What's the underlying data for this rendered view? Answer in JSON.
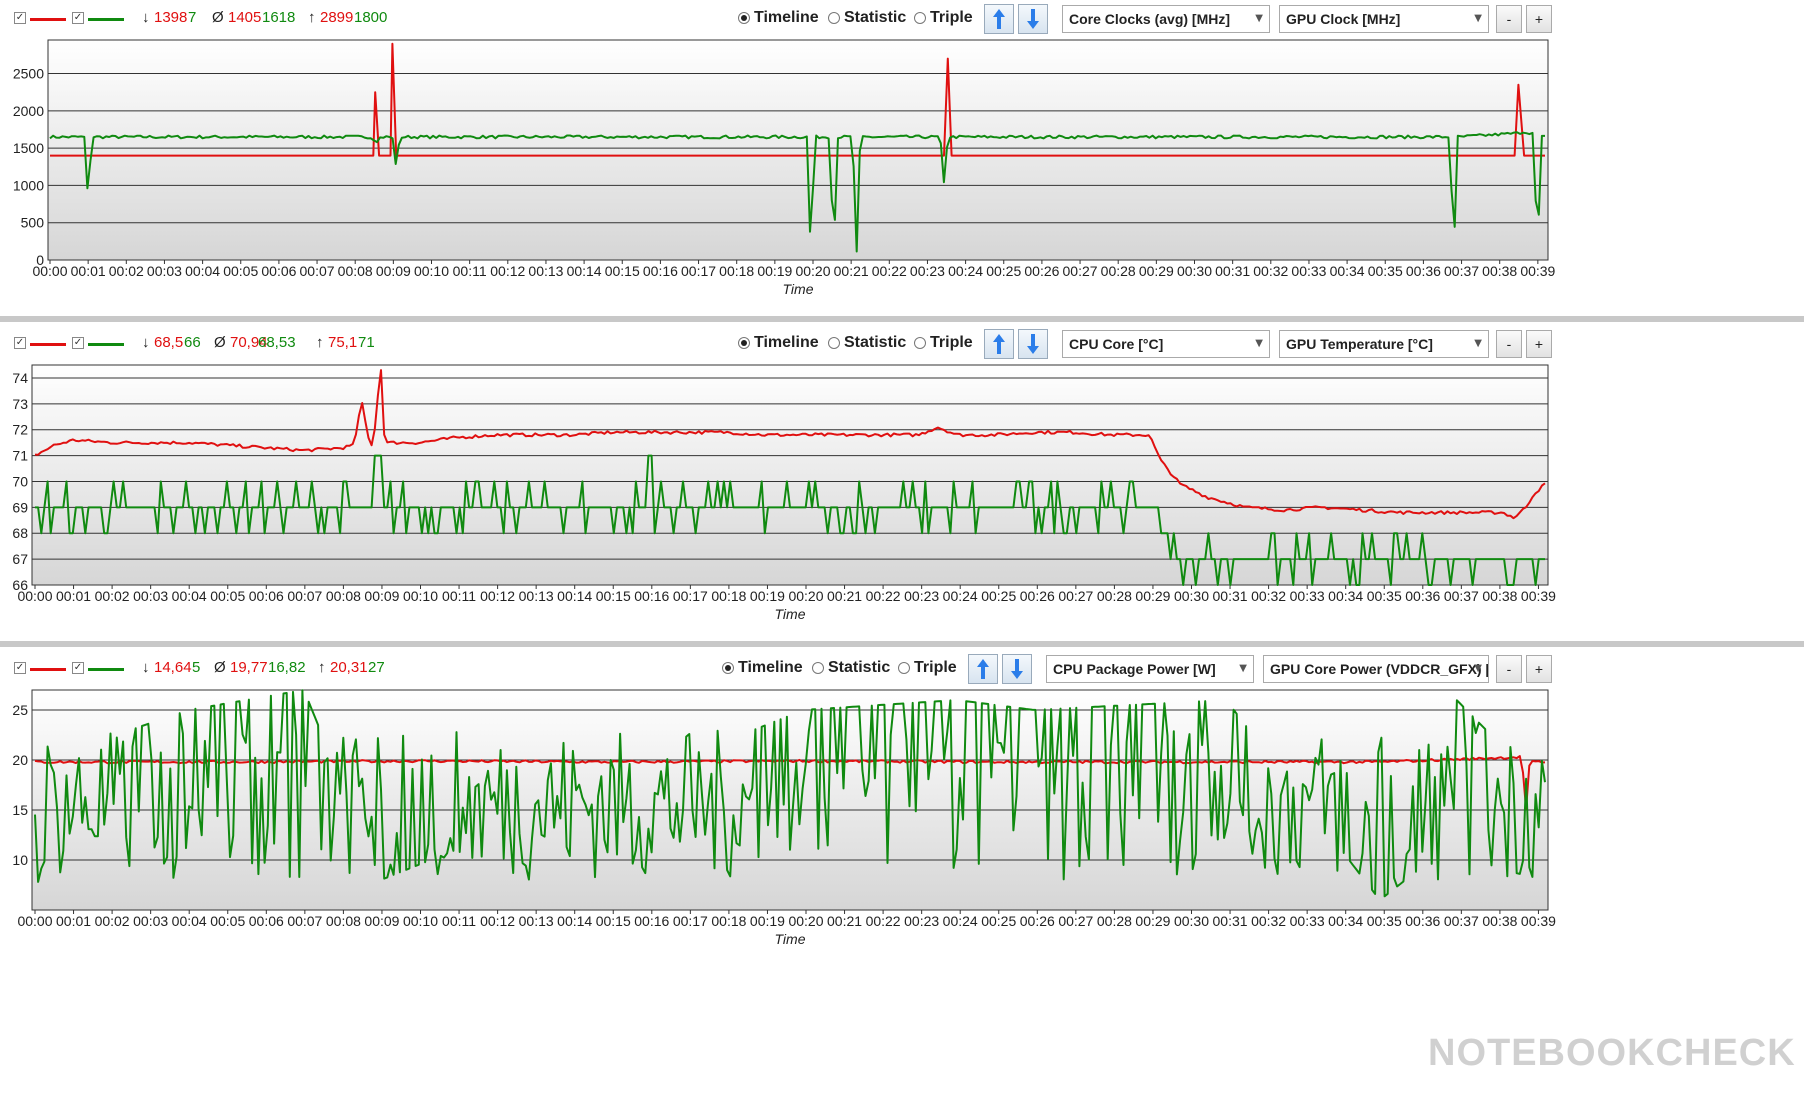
{
  "panels": [
    {
      "stats": {
        "min_red": "1398",
        "min_green": "7",
        "avg_red": "1405",
        "avg_green": "1618",
        "max_red": "2899",
        "max_green": "1800"
      },
      "radio": {
        "timeline": "Timeline",
        "statistic": "Statistic",
        "triple": "Triple"
      },
      "select_red": "Core Clocks (avg) [MHz]",
      "select_green": "GPU Clock [MHz]",
      "minus": "-",
      "plus": "+",
      "x_label": "Time",
      "x_ticks": [
        "00:00",
        "00:01",
        "00:02",
        "00:03",
        "00:04",
        "00:05",
        "00:06",
        "00:07",
        "00:08",
        "00:09",
        "00:10",
        "00:11",
        "00:12",
        "00:13",
        "00:14",
        "00:15",
        "00:16",
        "00:17",
        "00:18",
        "00:19",
        "00:20",
        "00:21",
        "00:22",
        "00:23",
        "00:24",
        "00:25",
        "00:26",
        "00:27",
        "00:28",
        "00:29",
        "00:30",
        "00:31",
        "00:32",
        "00:33",
        "00:34",
        "00:35",
        "00:36",
        "00:37",
        "00:38",
        "00:39"
      ],
      "y_ticks": [
        "0",
        "500",
        "1000",
        "1500",
        "2000",
        "2500"
      ]
    },
    {
      "stats": {
        "min_red": "68,5",
        "min_green": "66",
        "avg_red": "70,94",
        "avg_green": "68,53",
        "max_red": "75,1",
        "max_green": "71"
      },
      "radio": {
        "timeline": "Timeline",
        "statistic": "Statistic",
        "triple": "Triple"
      },
      "select_red": "CPU Core [°C]",
      "select_green": "GPU Temperature [°C]",
      "minus": "-",
      "plus": "+",
      "x_label": "Time",
      "x_ticks": [
        "00:00",
        "00:01",
        "00:02",
        "00:03",
        "00:04",
        "00:05",
        "00:06",
        "00:07",
        "00:08",
        "00:09",
        "00:10",
        "00:11",
        "00:12",
        "00:13",
        "00:14",
        "00:15",
        "00:16",
        "00:17",
        "00:18",
        "00:19",
        "00:20",
        "00:21",
        "00:22",
        "00:23",
        "00:24",
        "00:25",
        "00:26",
        "00:27",
        "00:28",
        "00:29",
        "00:30",
        "00:31",
        "00:32",
        "00:33",
        "00:34",
        "00:35",
        "00:36",
        "00:37",
        "00:38",
        "00:39"
      ],
      "y_ticks": [
        "66",
        "67",
        "68",
        "69",
        "70",
        "71",
        "72",
        "73",
        "74"
      ]
    },
    {
      "stats": {
        "min_red": "14,64",
        "min_green": "5",
        "avg_red": "19,77",
        "avg_green": "16,82",
        "max_red": "20,31",
        "max_green": "27"
      },
      "radio": {
        "timeline": "Timeline",
        "statistic": "Statistic",
        "triple": "Triple"
      },
      "select_red": "CPU Package Power [W]",
      "select_green": "GPU Core Power (VDDCR_GFX) [W]",
      "minus": "-",
      "plus": "+",
      "x_label": "Time",
      "x_ticks": [
        "00:00",
        "00:01",
        "00:02",
        "00:03",
        "00:04",
        "00:05",
        "00:06",
        "00:07",
        "00:08",
        "00:09",
        "00:10",
        "00:11",
        "00:12",
        "00:13",
        "00:14",
        "00:15",
        "00:16",
        "00:17",
        "00:18",
        "00:19",
        "00:20",
        "00:21",
        "00:22",
        "00:23",
        "00:24",
        "00:25",
        "00:26",
        "00:27",
        "00:28",
        "00:29",
        "00:30",
        "00:31",
        "00:32",
        "00:33",
        "00:34",
        "00:35",
        "00:36",
        "00:37",
        "00:38",
        "00:39"
      ],
      "y_ticks": [
        "10",
        "15",
        "20",
        "25"
      ]
    }
  ],
  "watermark": "NOTEBOOKCHECK",
  "colors": {
    "red": "#e01010",
    "green": "#108a10"
  },
  "chart_data": [
    {
      "type": "line",
      "xlabel": "Time",
      "ylabel": "",
      "x_range_minutes": [
        0,
        39.3
      ],
      "ylim": [
        0,
        2950
      ],
      "series": [
        {
          "name": "Core Clocks (avg) [MHz]",
          "color": "#e01010",
          "baseline": 1400,
          "x": [
            0,
            8.5,
            8.55,
            8.65,
            8.75,
            8.95,
            9.0,
            9.1,
            23.5,
            23.6,
            23.7,
            38.5,
            38.6,
            38.75,
            39.3
          ],
          "y": [
            1400,
            1400,
            2250,
            1400,
            1400,
            1400,
            2899,
            1400,
            1400,
            2700,
            1400,
            1400,
            2350,
            1400,
            1400
          ]
        },
        {
          "name": "GPU Clock [MHz]",
          "color": "#108a10",
          "baseline": 1650,
          "x": [
            0,
            0.9,
            1.0,
            1.1,
            8.4,
            8.6,
            8.7,
            9.0,
            9.1,
            9.2,
            19.9,
            20.0,
            20.1,
            20.3,
            20.5,
            20.6,
            20.7,
            21.1,
            21.2,
            21.3,
            23.4,
            23.5,
            23.6,
            36.8,
            36.9,
            37.0,
            38.6,
            38.7,
            39.0,
            39.1,
            39.2,
            39.3
          ],
          "y": [
            1650,
            1650,
            800,
            1650,
            1650,
            1600,
            1650,
            1650,
            1250,
            1650,
            1650,
            7,
            1650,
            1650,
            1650,
            7,
            1650,
            1650,
            7,
            1650,
            1650,
            1020,
            1650,
            1650,
            7,
            1650,
            1700,
            1720,
            1700,
            7,
            1650,
            1650
          ]
        }
      ]
    },
    {
      "type": "line",
      "xlabel": "Time",
      "ylabel": "",
      "x_range_minutes": [
        0,
        39.3
      ],
      "ylim": [
        66,
        74.5
      ],
      "series": [
        {
          "name": "CPU Core [°C]",
          "color": "#e01010",
          "x": [
            0,
            0.5,
            1,
            2,
            3,
            4,
            5,
            6,
            7,
            8,
            8.3,
            8.5,
            8.7,
            8.8,
            9.0,
            9.1,
            10,
            11,
            12,
            13,
            14,
            15,
            16,
            17,
            18,
            19,
            20,
            21,
            22,
            23,
            23.5,
            24,
            25,
            26,
            27,
            28,
            29,
            29.3,
            29.8,
            30.5,
            31.5,
            32.5,
            33.5,
            34.5,
            35.5,
            36.5,
            37.5,
            38.2,
            38.5,
            38.8,
            39.0,
            39.3
          ],
          "y": [
            71.0,
            71.4,
            71.6,
            71.5,
            71.5,
            71.5,
            71.4,
            71.3,
            71.2,
            71.3,
            71.4,
            73.1,
            71.5,
            71.4,
            74.5,
            71.5,
            71.5,
            71.7,
            71.8,
            71.8,
            71.8,
            71.9,
            71.9,
            71.9,
            71.9,
            71.8,
            71.8,
            71.8,
            71.8,
            71.8,
            72.1,
            71.8,
            71.8,
            71.9,
            71.9,
            71.8,
            71.8,
            70.8,
            69.9,
            69.4,
            69.0,
            68.9,
            69.0,
            68.9,
            68.8,
            68.8,
            68.8,
            68.8,
            68.6,
            69.0,
            69.5,
            69.9
          ]
        },
        {
          "name": "GPU Temperature [°C]",
          "color": "#108a10",
          "x": [
            0,
            3,
            6,
            8.8,
            8.95,
            9.1,
            12,
            15,
            15.9,
            16.0,
            16.1,
            20,
            25,
            29.3,
            29.6,
            33,
            36,
            38.3,
            38.7,
            39.3
          ],
          "y": [
            69,
            69,
            69,
            69,
            71,
            69,
            69,
            69,
            69,
            71,
            69,
            69,
            69,
            69,
            67,
            67,
            67,
            67,
            67,
            67
          ]
        }
      ]
    },
    {
      "type": "line",
      "xlabel": "Time",
      "ylabel": "",
      "x_range_minutes": [
        0,
        39.3
      ],
      "ylim": [
        5,
        27
      ],
      "series": [
        {
          "name": "CPU Package Power [W]",
          "color": "#e01010",
          "x": [
            0,
            5,
            10,
            15,
            20,
            25,
            30,
            35,
            38.7,
            38.8,
            38.9,
            39.3
          ],
          "y": [
            19.8,
            19.8,
            19.9,
            19.8,
            19.9,
            19.8,
            19.8,
            19.8,
            20.3,
            14.64,
            19.8,
            19.8
          ]
        },
        {
          "name": "GPU Core Power (VDDCR_GFX) [W]",
          "color": "#108a10",
          "x": [
            0,
            0.1,
            0.2,
            4.0,
            7.0,
            9.0,
            20.0,
            24.0,
            26.0,
            31.0,
            35.0,
            36.0,
            37.0,
            39.3
          ],
          "y": [
            16,
            6,
            20,
            25,
            27,
            8,
            25,
            26,
            25,
            26,
            6,
            9,
            26,
            17
          ]
        }
      ]
    }
  ]
}
